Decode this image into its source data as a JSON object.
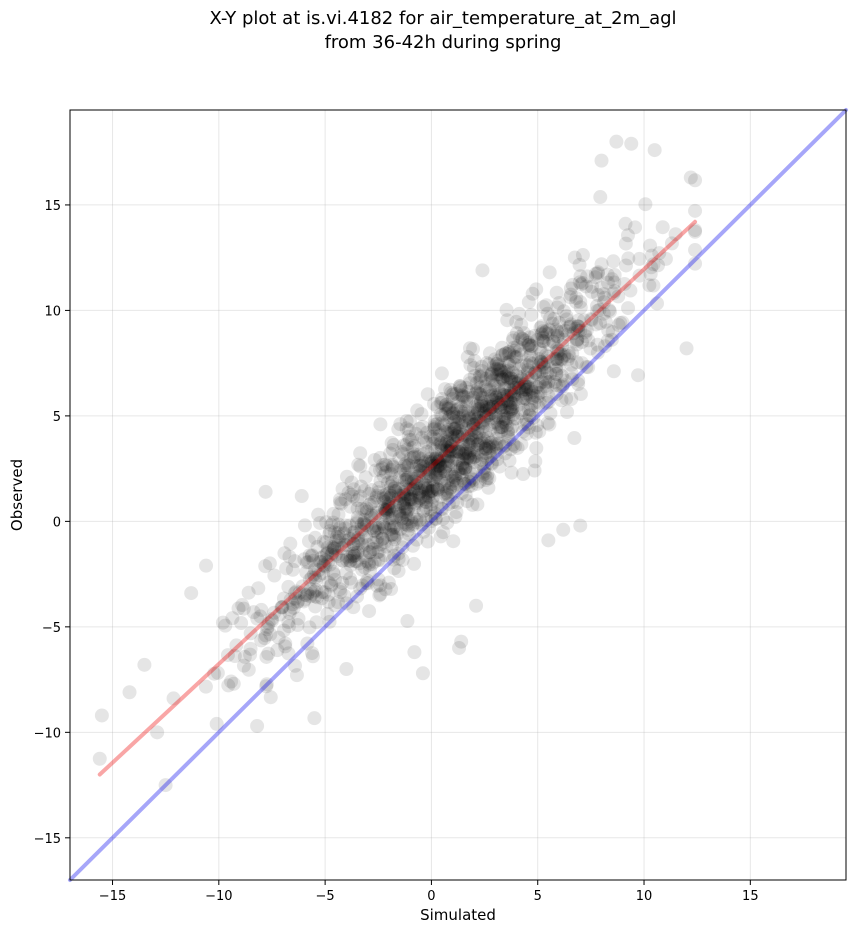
{
  "chart_data": {
    "type": "scatter",
    "title": "X-Y plot at is.vi.4182 for air_temperature_at_2m_agl",
    "subtitle": "from 36-42h during spring",
    "xlabel": "Simulated",
    "ylabel": "Observed",
    "xlim": [
      -17,
      19.5
    ],
    "ylim": [
      -17,
      19.5
    ],
    "xticks": [
      -15,
      -10,
      -5,
      0,
      5,
      10,
      15
    ],
    "yticks": [
      -15,
      -10,
      -5,
      0,
      5,
      10,
      15
    ],
    "xtick_labels": [
      "−15",
      "−10",
      "−5",
      "0",
      "5",
      "10",
      "15"
    ],
    "ytick_labels": [
      "−15",
      "−10",
      "−5",
      "0",
      "5",
      "10",
      "15"
    ],
    "grid": true,
    "point_color": "#000000",
    "point_alpha": 0.1,
    "reference_lines": [
      {
        "kind": "1:1",
        "color": "#0000ee",
        "x": [
          -17,
          19.5
        ],
        "y": [
          -17,
          19.5
        ]
      },
      {
        "kind": "fit",
        "color": "#ee0000",
        "x": [
          -15.6,
          12.4
        ],
        "y": [
          -12.0,
          14.2
        ]
      }
    ],
    "cloud": {
      "n_points": 1500,
      "x_range": [
        -15.6,
        12.4
      ],
      "x_center": 1.0,
      "x_spread": 4.2,
      "fit_slope": 0.93,
      "fit_intercept": 2.5,
      "residual_spread": 1.6
    },
    "sample_points": [
      {
        "x": -15.5,
        "y": -9.2
      },
      {
        "x": -14.2,
        "y": -8.1
      },
      {
        "x": -13.5,
        "y": -6.8
      },
      {
        "x": -12.9,
        "y": -10.0
      },
      {
        "x": -11.3,
        "y": -3.4
      },
      {
        "x": -10.6,
        "y": -2.1
      },
      {
        "x": -10.1,
        "y": -9.6
      },
      {
        "x": -8.2,
        "y": -9.7
      },
      {
        "x": -7.8,
        "y": 1.4
      },
      {
        "x": -6.1,
        "y": 1.2
      },
      {
        "x": -4.0,
        "y": -7.0
      },
      {
        "x": -2.4,
        "y": 4.6
      },
      {
        "x": -0.8,
        "y": -6.2
      },
      {
        "x": -0.4,
        "y": -7.2
      },
      {
        "x": 0.0,
        "y": 2.0
      },
      {
        "x": 0.5,
        "y": 5.8
      },
      {
        "x": 1.3,
        "y": -6.0
      },
      {
        "x": 1.4,
        "y": -5.7
      },
      {
        "x": 2.1,
        "y": -4.0
      },
      {
        "x": 2.4,
        "y": 11.9
      },
      {
        "x": 5.5,
        "y": -0.9
      },
      {
        "x": 6.2,
        "y": -0.4
      },
      {
        "x": 7.0,
        "y": -0.2
      },
      {
        "x": 8.0,
        "y": 17.1
      },
      {
        "x": 8.7,
        "y": 18.0
      },
      {
        "x": 9.4,
        "y": 17.9
      },
      {
        "x": 10.5,
        "y": 17.6
      },
      {
        "x": 12.0,
        "y": 8.2
      },
      {
        "x": 12.2,
        "y": 16.3
      }
    ]
  }
}
